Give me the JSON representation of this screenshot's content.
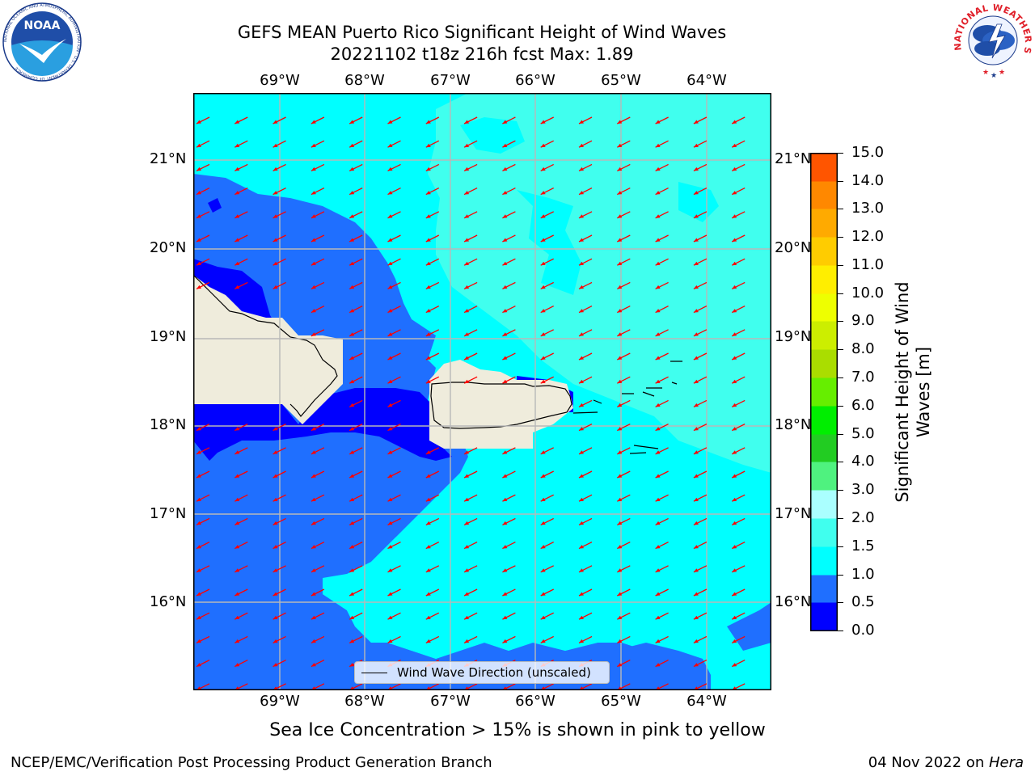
{
  "header": {
    "title_line1": "GEFS MEAN Puerto Rico Significant Height of Wind Waves",
    "title_line2": "20221102 t18z 216h fcst   Max: 1.89"
  },
  "logos": {
    "noaa_text": "NOAA",
    "noaa_ring_text": "NATIONAL OCEANIC AND ATMOSPHERIC ADMINISTRATION · U.S. DEPARTMENT OF COMMERCE",
    "nws_ring_text": "NATIONAL WEATHER SERVICE"
  },
  "map": {
    "lon_labels": [
      "69°W",
      "68°W",
      "67°W",
      "66°W",
      "65°W",
      "64°W"
    ],
    "lat_labels": [
      "21°N",
      "20°N",
      "19°N",
      "18°N",
      "17°N",
      "16°N"
    ],
    "legend_label": "Wind Wave Direction (unscaled)",
    "arrow_color": "#ff0000",
    "land_color": "#efecdc"
  },
  "colorbar": {
    "label": "Significant Height of Wind Waves [m]",
    "ticks": [
      "15.0",
      "14.0",
      "13.0",
      "12.0",
      "11.0",
      "10.0",
      "9.0",
      "8.0",
      "7.0",
      "6.0",
      "5.0",
      "4.0",
      "3.0",
      "2.0",
      "1.5",
      "1.0",
      "0.5",
      "0.0"
    ],
    "colors_bottom_to_top": [
      "#0000ff",
      "#1f6fff",
      "#00ffff",
      "#40ffee",
      "#aaffff",
      "#4ff27f",
      "#22cc22",
      "#00ee00",
      "#66ee00",
      "#aadd00",
      "#ccee00",
      "#eeff00",
      "#ffee00",
      "#ffcc00",
      "#ffaa00",
      "#ff8800",
      "#ff5500",
      "#ff2a00",
      "#ff0000"
    ]
  },
  "footer": {
    "note": "Sea Ice Concentration > 15% is shown in pink to yellow",
    "left": "NCEP/EMC/Verification Post Processing Product Generation Branch",
    "right_date": "04 Nov 2022 on ",
    "right_host": "Hera"
  }
}
